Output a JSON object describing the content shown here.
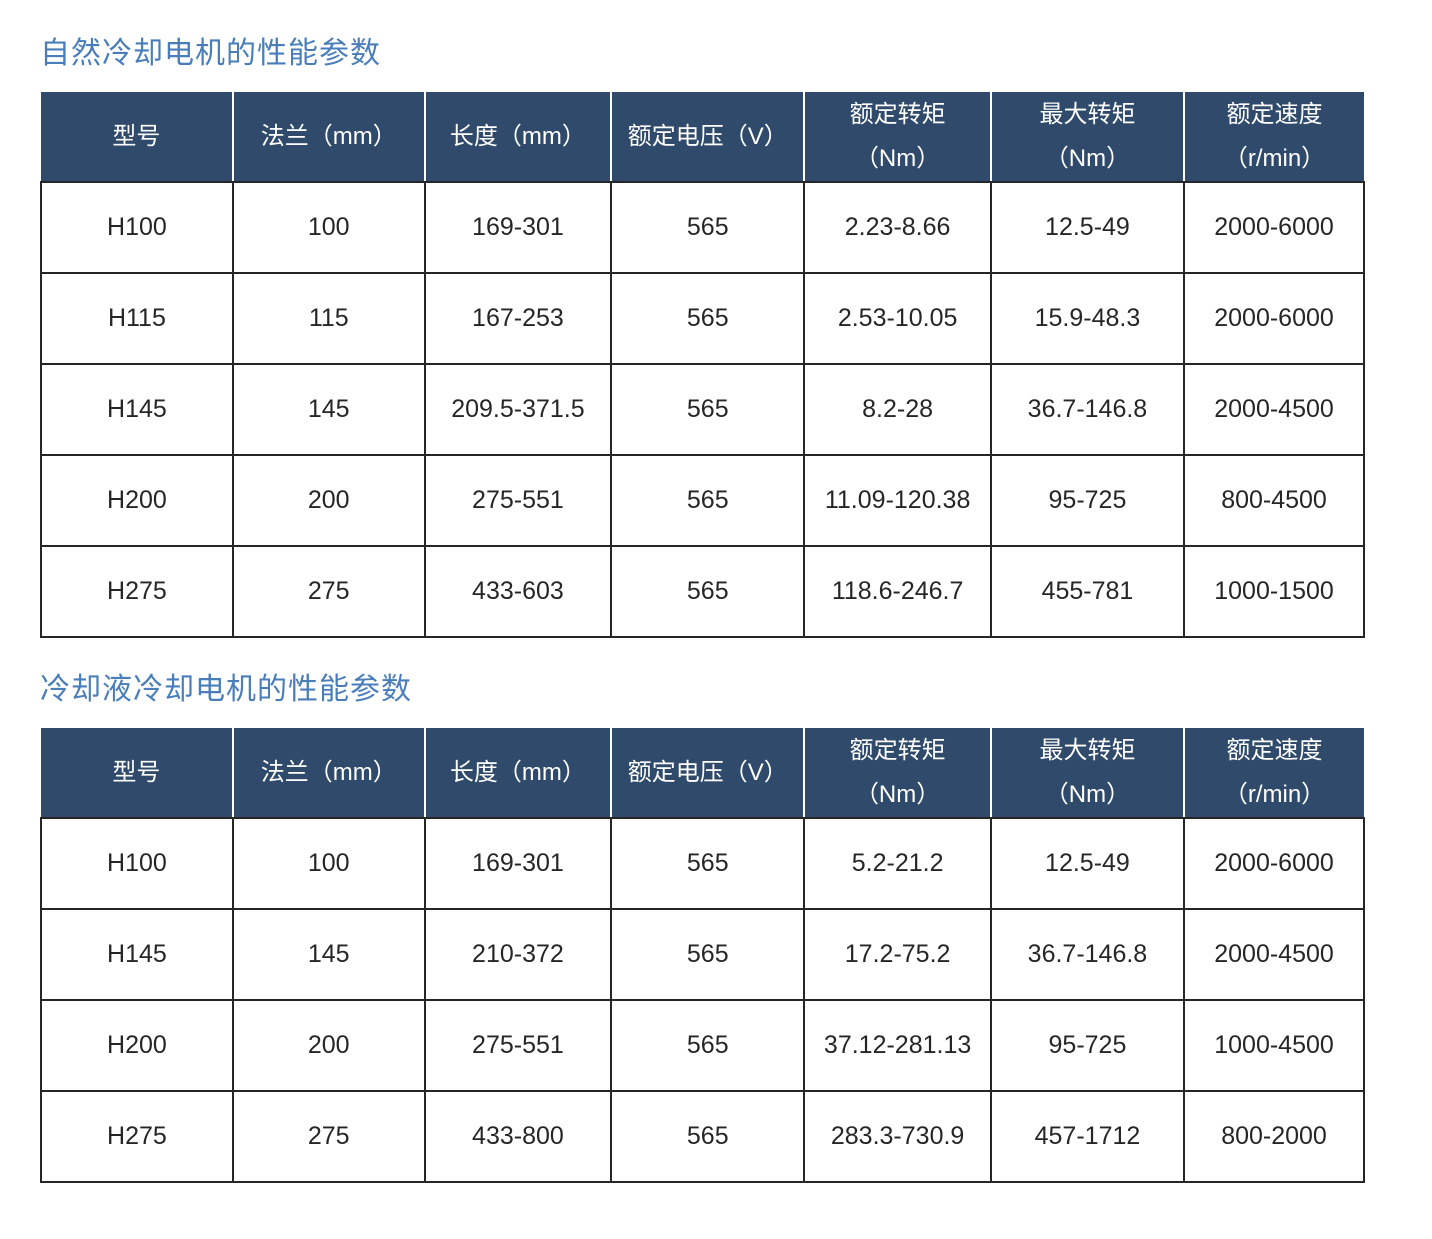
{
  "colors": {
    "title_text": "#4A7EBB",
    "header_background": "#2F4A6A",
    "header_text": "#FFFFFF",
    "cell_text": "#262626",
    "grid_border": "#262626",
    "header_separator": "#FFFFFF"
  },
  "sections": [
    {
      "title": "自然冷却电机的性能参数",
      "table": {
        "columns": [
          {
            "label": "型号",
            "sub": ""
          },
          {
            "label": "法兰（mm）",
            "sub": ""
          },
          {
            "label": "长度（mm）",
            "sub": ""
          },
          {
            "label": "额定电压（V）",
            "sub": ""
          },
          {
            "label": "额定转矩",
            "sub": "（Nm）"
          },
          {
            "label": "最大转矩",
            "sub": "（Nm）"
          },
          {
            "label": "额定速度",
            "sub": "（r/min）"
          }
        ],
        "rows": [
          [
            "H100",
            "100",
            "169-301",
            "565",
            "2.23-8.66",
            "12.5-49",
            "2000-6000"
          ],
          [
            "H115",
            "115",
            "167-253",
            "565",
            "2.53-10.05",
            "15.9-48.3",
            "2000-6000"
          ],
          [
            "H145",
            "145",
            "209.5-371.5",
            "565",
            "8.2-28",
            "36.7-146.8",
            "2000-4500"
          ],
          [
            "H200",
            "200",
            "275-551",
            "565",
            "11.09-120.38",
            "95-725",
            "800-4500"
          ],
          [
            "H275",
            "275",
            "433-603",
            "565",
            "118.6-246.7",
            "455-781",
            "1000-1500"
          ]
        ]
      }
    },
    {
      "title": "冷却液冷却电机的性能参数",
      "table": {
        "columns": [
          {
            "label": "型号",
            "sub": ""
          },
          {
            "label": "法兰（mm）",
            "sub": ""
          },
          {
            "label": "长度（mm）",
            "sub": ""
          },
          {
            "label": "额定电压（V）",
            "sub": ""
          },
          {
            "label": "额定转矩",
            "sub": "（Nm）"
          },
          {
            "label": "最大转矩",
            "sub": "（Nm）"
          },
          {
            "label": "额定速度",
            "sub": "（r/min）"
          }
        ],
        "rows": [
          [
            "H100",
            "100",
            "169-301",
            "565",
            "5.2-21.2",
            "12.5-49",
            "2000-6000"
          ],
          [
            "H145",
            "145",
            "210-372",
            "565",
            "17.2-75.2",
            "36.7-146.8",
            "2000-4500"
          ],
          [
            "H200",
            "200",
            "275-551",
            "565",
            "37.12-281.13",
            "95-725",
            "1000-4500"
          ],
          [
            "H275",
            "275",
            "433-800",
            "565",
            "283.3-730.9",
            "457-1712",
            "800-2000"
          ]
        ]
      }
    }
  ]
}
